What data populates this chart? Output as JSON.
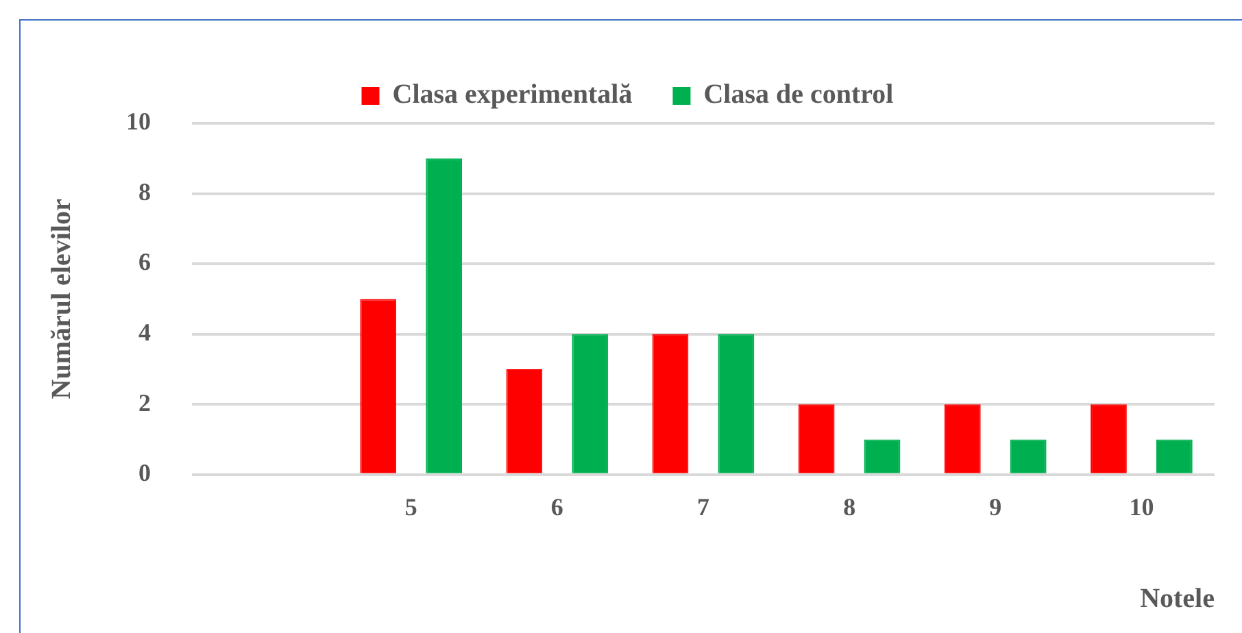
{
  "chart_data": {
    "type": "bar",
    "xlabel": "Notele",
    "ylabel": "Numărul elevilor",
    "categories": [
      null,
      "5",
      "6",
      "7",
      "8",
      "9",
      "10"
    ],
    "series": [
      {
        "name": "Clasa experimentală",
        "color": "#ff0000",
        "values": [
          null,
          5,
          3,
          4,
          2,
          2,
          2
        ]
      },
      {
        "name": "Clasa de control",
        "color": "#00b050",
        "values": [
          null,
          9,
          4,
          4,
          1,
          1,
          1
        ]
      }
    ],
    "ylim": [
      0,
      10
    ],
    "yticks": [
      0,
      2,
      4,
      6,
      8,
      10
    ],
    "grid": "y",
    "legend": "top"
  }
}
